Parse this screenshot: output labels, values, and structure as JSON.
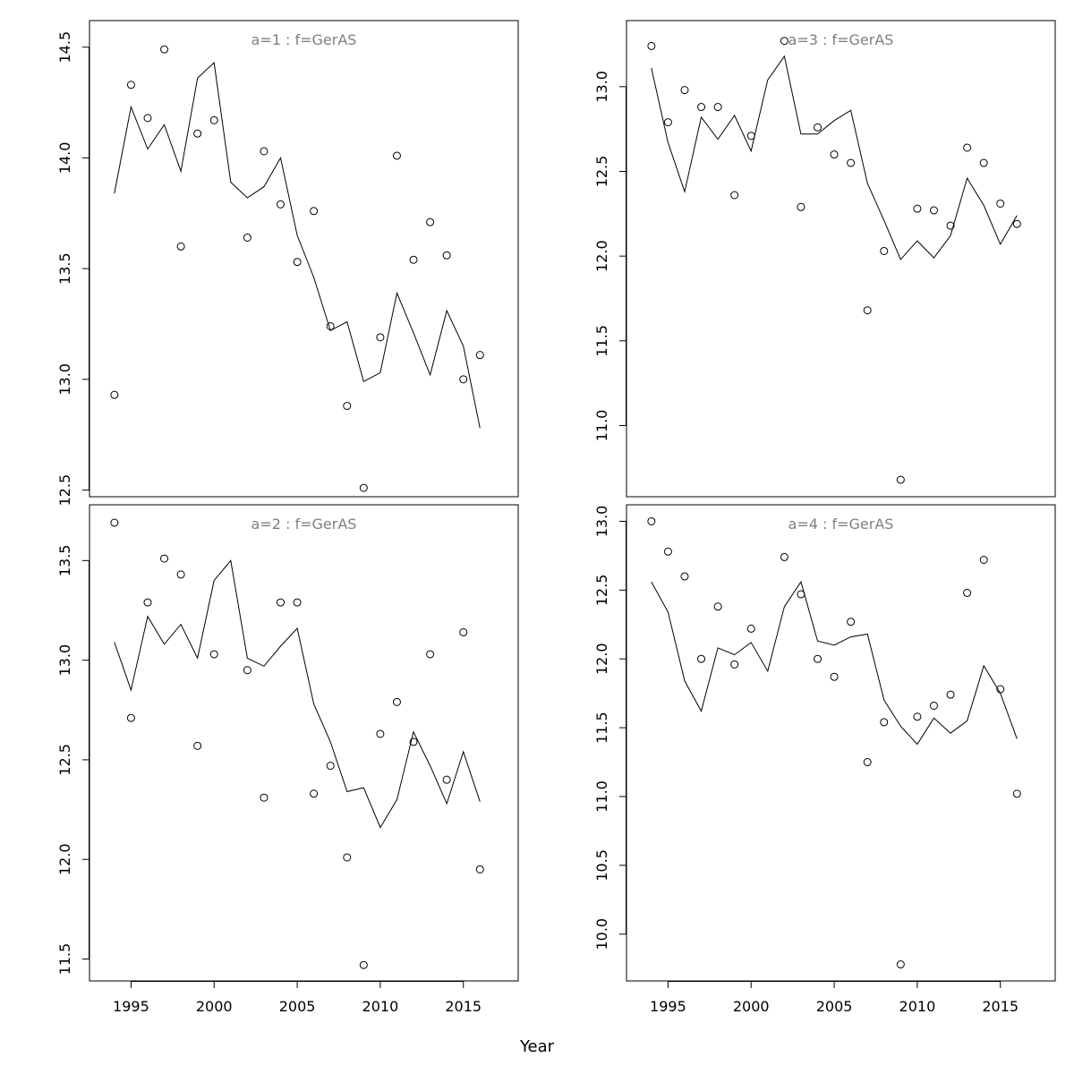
{
  "xlabel": "Year",
  "colors": {
    "fit_line": "#000000",
    "obs_points": "#000000",
    "panel_title": "#7f7f7f",
    "frame": "#000000"
  },
  "chart_data": [
    {
      "type": "scatter",
      "title": "a=1  :  f=GerAS",
      "xlabel": "Year",
      "ylabel": "",
      "xlim": [
        1992.5,
        2018.3
      ],
      "ylim": [
        12.47,
        14.62
      ],
      "x_ticks": [
        "1995",
        "2000",
        "2005",
        "2010",
        "2015"
      ],
      "y_ticks": [
        "12.5",
        "13.0",
        "13.5",
        "14.0",
        "14.5"
      ],
      "x": [
        1994,
        1995,
        1996,
        1997,
        1998,
        1999,
        2000,
        2001,
        2002,
        2003,
        2004,
        2005,
        2006,
        2007,
        2008,
        2009,
        2010,
        2011,
        2012,
        2013,
        2014,
        2015,
        2016
      ],
      "observed": [
        12.93,
        14.33,
        14.18,
        14.49,
        13.6,
        14.11,
        14.17,
        null,
        13.64,
        14.03,
        13.79,
        13.53,
        13.76,
        13.24,
        12.88,
        12.51,
        13.19,
        14.01,
        13.54,
        13.71,
        13.56,
        13.0,
        13.11
      ],
      "fitted": [
        13.84,
        14.23,
        14.04,
        14.15,
        13.94,
        14.36,
        14.43,
        13.89,
        13.82,
        13.87,
        14.0,
        13.65,
        13.46,
        13.22,
        13.26,
        12.99,
        13.03,
        13.39,
        13.21,
        13.02,
        13.31,
        13.15,
        12.78
      ]
    },
    {
      "type": "scatter",
      "title": "a=2  :  f=GerAS",
      "xlabel": "Year",
      "ylabel": "",
      "xlim": [
        1992.5,
        2018.3
      ],
      "ylim": [
        11.39,
        13.78
      ],
      "x_ticks": [
        "1995",
        "2000",
        "2005",
        "2010",
        "2015"
      ],
      "y_ticks": [
        "11.5",
        "12.0",
        "12.5",
        "13.0",
        "13.5"
      ],
      "x": [
        1994,
        1995,
        1996,
        1997,
        1998,
        1999,
        2000,
        2001,
        2002,
        2003,
        2004,
        2005,
        2006,
        2007,
        2008,
        2009,
        2010,
        2011,
        2012,
        2013,
        2014,
        2015,
        2016
      ],
      "observed": [
        13.69,
        12.71,
        13.29,
        13.51,
        13.43,
        12.57,
        13.03,
        null,
        12.95,
        12.31,
        13.29,
        13.29,
        12.33,
        12.47,
        12.01,
        11.47,
        12.63,
        12.79,
        12.59,
        13.03,
        12.4,
        13.14,
        11.95
      ],
      "fitted": [
        13.09,
        12.85,
        13.22,
        13.08,
        13.18,
        13.01,
        13.4,
        13.5,
        13.01,
        12.97,
        13.07,
        13.16,
        12.78,
        12.59,
        12.34,
        12.36,
        12.16,
        12.3,
        12.64,
        12.47,
        12.28,
        12.54,
        12.29
      ]
    },
    {
      "type": "scatter",
      "title": "a=3  :  f=GerAS",
      "xlabel": "Year",
      "ylabel": "",
      "xlim": [
        1992.5,
        2018.3
      ],
      "ylim": [
        10.58,
        13.39
      ],
      "x_ticks": [
        "1995",
        "2000",
        "2005",
        "2010",
        "2015"
      ],
      "y_ticks": [
        "11.0",
        "11.5",
        "12.0",
        "12.5",
        "13.0"
      ],
      "x": [
        1994,
        1995,
        1996,
        1997,
        1998,
        1999,
        2000,
        2001,
        2002,
        2003,
        2004,
        2005,
        2006,
        2007,
        2008,
        2009,
        2010,
        2011,
        2012,
        2013,
        2014,
        2015,
        2016
      ],
      "observed": [
        13.24,
        12.79,
        12.98,
        12.88,
        12.88,
        12.36,
        12.71,
        null,
        13.27,
        12.29,
        12.76,
        12.6,
        12.55,
        11.68,
        12.03,
        10.68,
        12.28,
        12.27,
        12.18,
        12.64,
        12.55,
        12.31,
        12.19
      ],
      "fitted": [
        13.11,
        12.67,
        12.38,
        12.82,
        12.69,
        12.83,
        12.62,
        13.04,
        13.18,
        12.72,
        12.72,
        12.8,
        12.86,
        12.43,
        12.21,
        11.98,
        12.09,
        11.99,
        12.12,
        12.46,
        12.3,
        12.07,
        12.24
      ]
    },
    {
      "type": "scatter",
      "title": "a=4  :  f=GerAS",
      "xlabel": "Year",
      "ylabel": "",
      "xlim": [
        1992.5,
        2018.3
      ],
      "ylim": [
        9.66,
        13.12
      ],
      "x_ticks": [
        "1995",
        "2000",
        "2005",
        "2010",
        "2015"
      ],
      "y_ticks": [
        "10.0",
        "10.5",
        "11.0",
        "11.5",
        "12.0",
        "12.5",
        "13.0"
      ],
      "x": [
        1994,
        1995,
        1996,
        1997,
        1998,
        1999,
        2000,
        2001,
        2002,
        2003,
        2004,
        2005,
        2006,
        2007,
        2008,
        2009,
        2010,
        2011,
        2012,
        2013,
        2014,
        2015,
        2016
      ],
      "observed": [
        13.0,
        12.78,
        12.6,
        12.0,
        12.38,
        11.96,
        12.22,
        null,
        12.74,
        12.47,
        12.0,
        11.87,
        12.27,
        11.25,
        11.54,
        9.78,
        11.58,
        11.66,
        11.74,
        12.48,
        12.72,
        11.78,
        11.02
      ],
      "fitted": [
        12.56,
        12.34,
        11.84,
        11.62,
        12.08,
        12.03,
        12.12,
        11.91,
        12.38,
        12.56,
        12.13,
        12.1,
        12.16,
        12.18,
        11.7,
        11.51,
        11.38,
        11.57,
        11.46,
        11.55,
        11.95,
        11.75,
        11.42
      ]
    }
  ]
}
